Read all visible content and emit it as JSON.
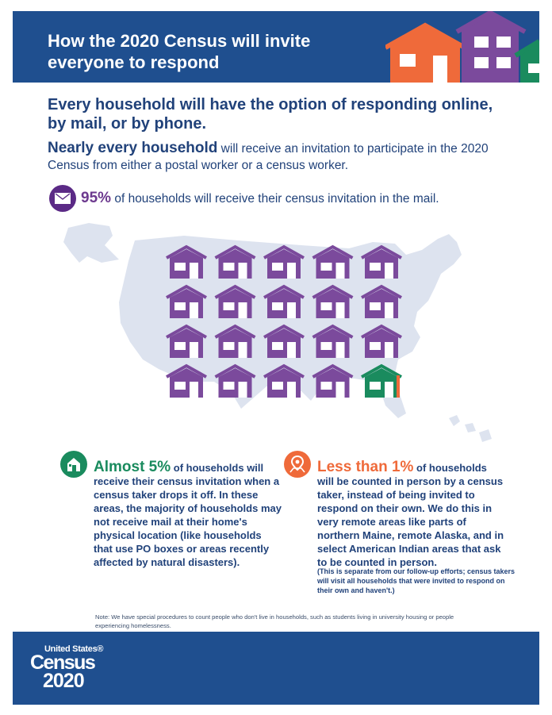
{
  "header": {
    "title": "How the 2020 Census will invite everyone to respond",
    "colors": {
      "background": "#1f4f8f",
      "orange": "#ef6a3a",
      "purple": "#7b4a9c",
      "green": "#1a8b5e"
    }
  },
  "lead": "Every household will have the option of responding online, by mail, or by phone.",
  "nearly": {
    "bold": "Nearly every household",
    "rest": " will receive an invitation to participate in the 2020 Census from either a postal worker or a census worker."
  },
  "mail": {
    "icon": "envelope-icon",
    "percent": "95%",
    "text": " of households will receive their census invitation in the mail."
  },
  "grid": {
    "total_houses": 20,
    "mail_houses": 19,
    "dropoff_houses": 1,
    "mail_color": "#7b4a9c",
    "dropoff_color": "#1a8b5e",
    "inperson_color": "#ef6a3a",
    "map_color": "#dde3ef"
  },
  "left_col": {
    "icon": "house-door-icon",
    "big": "Almost 5%",
    "rest": " of households will receive their census invitation when a census taker drops it off. In these areas, the majority of households may not receive mail at their home's physical location (like households that use PO boxes or areas recently affected by natural disasters)."
  },
  "right_col": {
    "icon": "location-pin-icon",
    "big": "Less than 1%",
    "rest": " of households will be counted in person by a census taker, instead of being invited to respond on their own. We do this in very remote areas like parts of northern Maine, remote Alaska, and in select American Indian areas that ask to be counted in person.",
    "separate": "(This is separate from our follow-up efforts; census takers will visit all households that were invited to respond on their own and haven't.)"
  },
  "note": "Note: We have special procedures to count people who don't live in households, such as students living in university housing or people experiencing homelessness.",
  "footer": {
    "logo_top": "United States®",
    "logo_main": "Census",
    "logo_year": "2020"
  }
}
